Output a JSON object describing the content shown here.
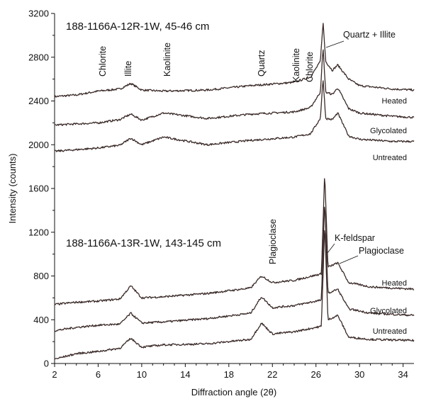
{
  "chart_data": {
    "type": "line",
    "title": "",
    "xlabel": "Diffraction angle (2θ)",
    "ylabel": "Intensity (counts)",
    "xlim": [
      2,
      35
    ],
    "ylim": [
      0,
      3200
    ],
    "x_ticks": [
      2,
      6,
      10,
      14,
      18,
      22,
      26,
      30,
      34
    ],
    "x_tick_labels": [
      "2",
      "6",
      "10",
      "14",
      "18",
      "22",
      "26",
      "30",
      "34"
    ],
    "y_ticks": [
      0,
      400,
      800,
      1200,
      1600,
      2000,
      2400,
      2800,
      3200
    ],
    "y_tick_labels": [
      "0",
      "400",
      "800",
      "1200",
      "1600",
      "2000",
      "2400",
      "2800",
      "3200"
    ],
    "grid": false,
    "samples": [
      {
        "label": "188-1166A-12R-1W, 45-46 cm",
        "series": [
          {
            "name": "Heated",
            "baseline": 2440,
            "x": [
              2,
              4,
              6,
              8,
              9,
              10,
              12,
              16,
              20,
              24,
              25.5,
              26.4,
              26.65,
              26.9,
              27.5,
              28,
              29,
              30,
              33,
              35
            ],
            "values": [
              2440,
              2455,
              2490,
              2510,
              2560,
              2500,
              2490,
              2500,
              2540,
              2570,
              2620,
              2760,
              3120,
              2760,
              2680,
              2730,
              2600,
              2540,
              2510,
              2500
            ]
          },
          {
            "name": "Glycolated",
            "baseline": 2180,
            "x": [
              2,
              4,
              6,
              8,
              9,
              10,
              12,
              16,
              20,
              24,
              25.5,
              26.4,
              26.65,
              26.9,
              27.5,
              28,
              29,
              30,
              33,
              35
            ],
            "values": [
              2180,
              2190,
              2200,
              2230,
              2280,
              2225,
              2290,
              2240,
              2280,
              2300,
              2340,
              2480,
              2880,
              2480,
              2460,
              2520,
              2330,
              2290,
              2260,
              2250
            ]
          },
          {
            "name": "Untreated",
            "baseline": 1940,
            "x": [
              2,
              4,
              6,
              8,
              9,
              10,
              12,
              16,
              20,
              24,
              25.5,
              26.4,
              26.65,
              26.9,
              27.5,
              28,
              29,
              30,
              33,
              35
            ],
            "values": [
              1940,
              1955,
              1970,
              1995,
              2060,
              2000,
              2070,
              2000,
              2040,
              2070,
              2100,
              2240,
              2600,
              2240,
              2230,
              2290,
              2080,
              2050,
              2030,
              2030
            ]
          }
        ],
        "annotations": [
          "Chlorite",
          "Illite",
          "Kaolinite",
          "Quartz",
          "Kaolinite",
          "Chlorite",
          "Quartz + Illite"
        ]
      },
      {
        "label": "188-1166A-13R-1W, 143-145 cm",
        "series": [
          {
            "name": "Heated",
            "baseline": 540,
            "x": [
              2,
              4,
              6,
              8,
              9,
              10,
              12,
              16,
              20,
              21,
              22,
              24,
              26.5,
              26.8,
              27.1,
              28,
              29,
              31,
              35
            ],
            "values": [
              540,
              560,
              570,
              590,
              710,
              600,
              610,
              640,
              690,
              800,
              740,
              760,
              820,
              1750,
              880,
              920,
              740,
              700,
              680
            ]
          },
          {
            "name": "Glycolated",
            "baseline": 300,
            "x": [
              2,
              4,
              6,
              8,
              9,
              10,
              12,
              16,
              20,
              21,
              22,
              24,
              26.5,
              26.8,
              27.1,
              28,
              29,
              31,
              35
            ],
            "values": [
              300,
              330,
              350,
              360,
              460,
              370,
              380,
              410,
              460,
              610,
              510,
              530,
              580,
              1500,
              640,
              680,
              500,
              460,
              440
            ]
          },
          {
            "name": "Untreated",
            "baseline": 40,
            "x": [
              2,
              4,
              6,
              8,
              9,
              10,
              12,
              16,
              20,
              21,
              22,
              24,
              26.5,
              26.8,
              27.1,
              28,
              29,
              31,
              35
            ],
            "values": [
              40,
              90,
              110,
              140,
              230,
              150,
              170,
              180,
              220,
              370,
              270,
              290,
              340,
              1280,
              400,
              440,
              240,
              220,
              210
            ]
          }
        ],
        "annotations": [
          "Plagioclase",
          "K-feldspar",
          "Plagioclase"
        ]
      }
    ]
  },
  "colors": {
    "trace": "#3a2a28",
    "axis": "#111111",
    "background": "#ffffff"
  }
}
